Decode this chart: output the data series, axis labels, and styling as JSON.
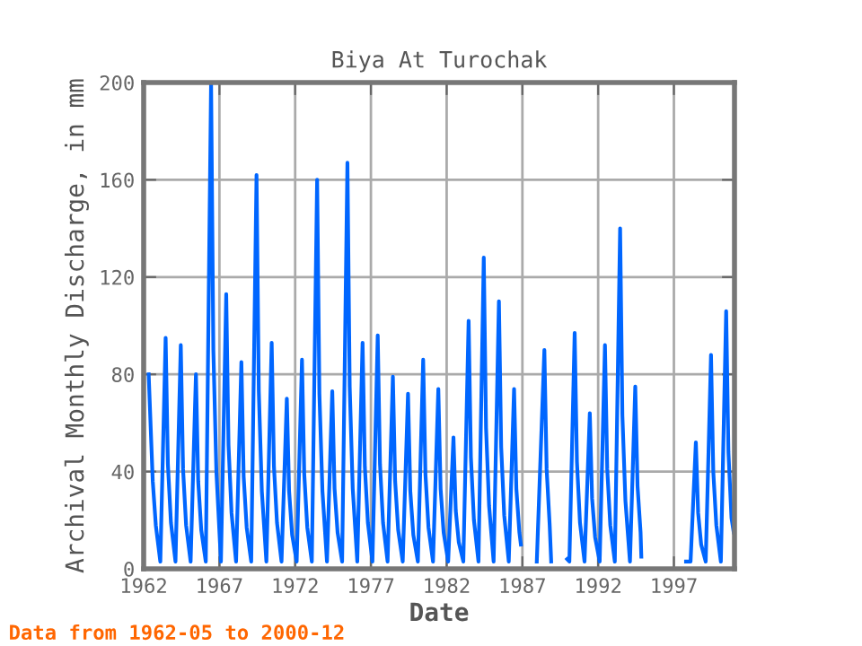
{
  "chart_data": {
    "type": "line",
    "title": "Biya At Turochak",
    "xlabel": "Date",
    "ylabel": "Archival Monthly Discharge, in mm",
    "annotations": [
      "Data from 1962-05 to 2000-12"
    ],
    "x": [
      1962.33,
      1962.6,
      1962.8,
      1963.1,
      1963.45,
      1963.6,
      1963.8,
      1964.1,
      1964.45,
      1964.6,
      1964.8,
      1965.1,
      1965.45,
      1965.6,
      1965.8,
      1966.1,
      1966.45,
      1966.6,
      1966.8,
      1967.1,
      1967.45,
      1967.6,
      1967.8,
      1968.1,
      1968.45,
      1968.6,
      1968.8,
      1969.1,
      1969.45,
      1969.6,
      1969.8,
      1970.1,
      1970.45,
      1970.6,
      1970.8,
      1971.1,
      1971.45,
      1971.6,
      1971.8,
      1972.1,
      1972.45,
      1972.6,
      1972.8,
      1973.1,
      1973.45,
      1973.6,
      1973.8,
      1974.1,
      1974.45,
      1974.6,
      1974.8,
      1975.1,
      1975.45,
      1975.6,
      1975.8,
      1976.1,
      1976.45,
      1976.6,
      1976.8,
      1977.1,
      1977.45,
      1977.6,
      1977.8,
      1978.1,
      1978.45,
      1978.6,
      1978.8,
      1979.1,
      1979.45,
      1979.6,
      1979.8,
      1980.1,
      1980.45,
      1980.6,
      1980.8,
      1981.1,
      1981.45,
      1981.6,
      1981.8,
      1982.1,
      1982.45,
      1982.6,
      1982.8,
      1983.1,
      1983.45,
      1983.6,
      1983.8,
      1984.1,
      1984.45,
      1984.6,
      1984.8,
      1985.1,
      1985.45,
      1985.6,
      1985.8,
      1986.1,
      1986.45,
      1986.6,
      1986.8,
      1986.9,
      1987.4,
      1987.95,
      1988.45,
      1988.6,
      1988.8,
      1988.9,
      1989.4,
      1989.95,
      1990.1,
      1990.45,
      1990.6,
      1990.8,
      1991.1,
      1991.45,
      1991.6,
      1991.8,
      1992.1,
      1992.45,
      1992.6,
      1992.8,
      1993.1,
      1993.45,
      1993.6,
      1993.8,
      1994.1,
      1994.45,
      1994.6,
      1994.8,
      1994.85,
      1996.0,
      1997.8,
      1998.1,
      1998.45,
      1998.6,
      1998.8,
      1999.1,
      1999.45,
      1999.6,
      1999.8,
      2000.1,
      2000.45,
      2000.6,
      2000.8,
      2000.95
    ],
    "series": [
      {
        "color": "#0066ff",
        "values": [
          80,
          36,
          18,
          3,
          95,
          43,
          19,
          3,
          92,
          41,
          18,
          3,
          80,
          36,
          16,
          3,
          200,
          90,
          40,
          3,
          113,
          51,
          23,
          3,
          85,
          38,
          17,
          3,
          162,
          73,
          32,
          3,
          93,
          42,
          19,
          3,
          70,
          32,
          14,
          3,
          86,
          39,
          17,
          3,
          160,
          72,
          32,
          3,
          73,
          33,
          15,
          3,
          167,
          75,
          33,
          3,
          93,
          42,
          19,
          3,
          96,
          43,
          19,
          3,
          79,
          36,
          16,
          3,
          72,
          32,
          14,
          3,
          86,
          39,
          17,
          3,
          74,
          33,
          15,
          3,
          54,
          24,
          11,
          3,
          102,
          46,
          20,
          3,
          128,
          58,
          26,
          3,
          110,
          50,
          22,
          3,
          74,
          33,
          15,
          10,
          null,
          3,
          90,
          41,
          18,
          3,
          null,
          4,
          3,
          97,
          44,
          19,
          3,
          64,
          29,
          13,
          3,
          92,
          41,
          18,
          3,
          140,
          63,
          28,
          3,
          75,
          34,
          15,
          5,
          null,
          3,
          3,
          52,
          23,
          10,
          3,
          88,
          40,
          18,
          3,
          106,
          48,
          21,
          15
        ]
      }
    ],
    "xlim": [
      1962,
      2001
    ],
    "xticks": [
      1962,
      1967,
      1972,
      1977,
      1982,
      1987,
      1992,
      1997
    ],
    "ylim": [
      0,
      200
    ],
    "yticks": [
      0,
      40,
      80,
      120,
      160,
      200
    ],
    "grid": true,
    "marker": "none",
    "line_style": "solid"
  }
}
